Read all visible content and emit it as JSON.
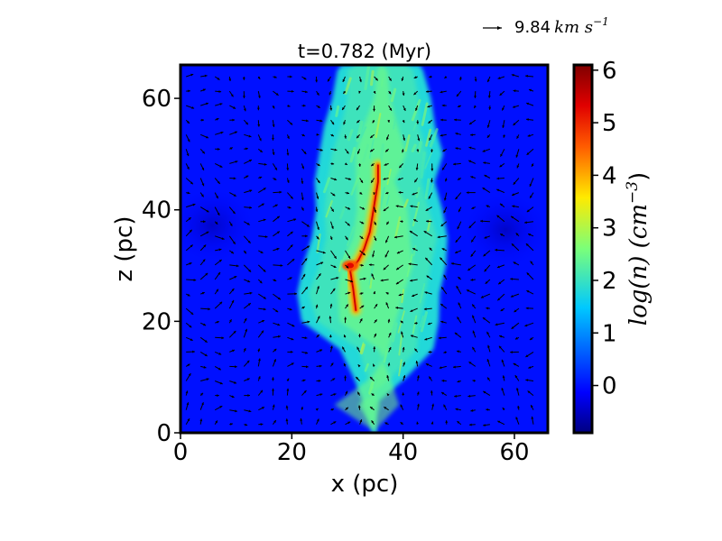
{
  "chart_data": {
    "type": "heatmap",
    "title": "t=0.782 (Myr)",
    "xlabel": "x (pc)",
    "ylabel": "z (pc)",
    "xlim": [
      0,
      66
    ],
    "ylim": [
      0,
      66
    ],
    "xticks": [
      "0",
      "20",
      "40",
      "60"
    ],
    "xtick_values": [
      0,
      20,
      40,
      60
    ],
    "yticks": [
      "0",
      "20",
      "40",
      "60"
    ],
    "ytick_values": [
      0,
      20,
      40,
      60
    ],
    "colorbar": {
      "label": "log(n) (cm⁻³)",
      "label_base": "log(n) (cm",
      "label_exp": "−3",
      "label_tail": ")",
      "range": [
        -0.9,
        6.1
      ],
      "ticks": [
        "0",
        "1",
        "2",
        "3",
        "4",
        "5",
        "6"
      ],
      "tick_values": [
        0,
        1,
        2,
        3,
        4,
        5,
        6
      ],
      "colormap": "jet"
    },
    "quiver_key": {
      "label": "9.84 km s⁻¹",
      "value": "9.84",
      "unit_base": "km s",
      "unit_exp": "−1"
    },
    "background_level": 0.0,
    "cloud": {
      "description_level_outer": 1.8,
      "description_level_inner": 2.6,
      "ridge_peak": 5.5,
      "left_edge_x_at_z": [
        [
          5,
          33
        ],
        [
          10,
          31
        ],
        [
          15,
          29
        ],
        [
          20,
          22
        ],
        [
          25,
          21
        ],
        [
          30,
          22
        ],
        [
          35,
          24
        ],
        [
          40,
          24
        ],
        [
          45,
          24
        ],
        [
          50,
          25
        ],
        [
          55,
          26
        ],
        [
          60,
          27
        ],
        [
          65,
          28
        ]
      ],
      "right_edge_x_at_z": [
        [
          5,
          35
        ],
        [
          10,
          41
        ],
        [
          15,
          45
        ],
        [
          20,
          46
        ],
        [
          25,
          47
        ],
        [
          30,
          48
        ],
        [
          35,
          48
        ],
        [
          40,
          47
        ],
        [
          45,
          46
        ],
        [
          50,
          47
        ],
        [
          55,
          46
        ],
        [
          60,
          45
        ],
        [
          65,
          44
        ]
      ],
      "ridge": [
        [
          31.5,
          22
        ],
        [
          31,
          26
        ],
        [
          30.5,
          29
        ],
        [
          32,
          31
        ],
        [
          33,
          33
        ],
        [
          34,
          36
        ],
        [
          34.5,
          39
        ],
        [
          35,
          42
        ],
        [
          35.5,
          45
        ],
        [
          35.5,
          48
        ]
      ]
    }
  }
}
